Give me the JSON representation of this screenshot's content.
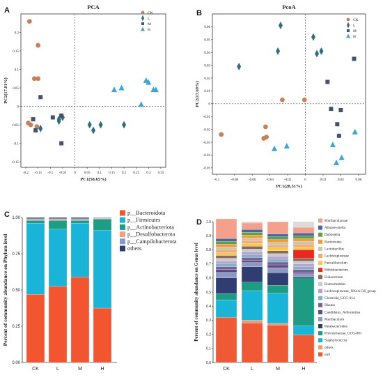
{
  "chart_data": [
    {
      "panel": "A",
      "type": "scatter",
      "title": "PCA",
      "xlabel": "PC1(58.65%)",
      "ylabel": "PC2(17.01%)",
      "xlim": [
        -0.22,
        0.37
      ],
      "ylim": [
        -0.165,
        0.25
      ],
      "xticks": [
        -0.2,
        -0.15,
        -0.1,
        -0.05,
        0,
        0.05,
        0.1,
        0.15,
        0.2,
        0.25,
        0.3,
        0.35
      ],
      "xtick_labels": [
        "-0.2",
        "-0.15",
        "-0.1",
        "-0.05",
        "0",
        "0.05",
        "0.1",
        "0.15",
        "0.2",
        "0.25",
        "0.3",
        "0.35"
      ],
      "yticks": [
        -0.15,
        -0.1,
        -0.05,
        0,
        0.05,
        0.1,
        0.15,
        0.2
      ],
      "ytick_labels": [
        "-0.15",
        "-0.1",
        "-0.05",
        "0",
        "0.05",
        "0.1",
        "0.15",
        "0.2"
      ],
      "legend_position": "top-right",
      "series": [
        {
          "name": "CK",
          "marker": "circle",
          "color": "#c8805a",
          "x": [
            -0.185,
            -0.15,
            -0.15,
            -0.165,
            -0.19,
            -0.18,
            -0.155
          ],
          "y": [
            0.23,
            0.165,
            0.075,
            0.075,
            -0.045,
            -0.05,
            -0.055
          ]
        },
        {
          "name": "L",
          "marker": "diamond",
          "color": "#2e6e7e",
          "x": [
            -0.14,
            -0.065,
            -0.065,
            -0.05,
            0.06,
            0.075,
            0.105,
            0.2
          ],
          "y": [
            -0.06,
            -0.035,
            -0.04,
            -0.03,
            -0.05,
            -0.065,
            -0.05,
            -0.05
          ]
        },
        {
          "name": "M",
          "marker": "square",
          "color": "#45526e",
          "x": [
            -0.14,
            -0.17,
            -0.16,
            -0.09,
            -0.055,
            -0.055
          ],
          "y": [
            0.025,
            -0.035,
            -0.065,
            -0.03,
            -0.1,
            -0.025
          ]
        },
        {
          "name": "H",
          "marker": "triangle",
          "color": "#3aa6d8",
          "x": [
            0.16,
            0.19,
            0.29,
            0.3,
            0.32,
            0.27,
            0.33
          ],
          "y": [
            0.045,
            0.05,
            0.07,
            0.065,
            0.045,
            0.005,
            0.045
          ]
        }
      ]
    },
    {
      "panel": "B",
      "type": "scatter",
      "title": "PcoA",
      "xlabel": "PC1(28.31%)",
      "ylabel": "PC2(17.69%)",
      "xlim": [
        -0.105,
        0.068
      ],
      "ylim": [
        -0.055,
        0.07
      ],
      "xticks": [
        -0.1,
        -0.08,
        -0.06,
        -0.04,
        -0.02,
        0,
        0.02,
        0.04,
        0.06
      ],
      "xtick_labels": [
        "-0.1",
        "-0.08",
        "-0.06",
        "-0.04",
        "-0.02",
        "0",
        "0.02",
        "0.04",
        "0.06"
      ],
      "yticks": [
        -0.05,
        -0.04,
        -0.03,
        -0.02,
        -0.01,
        0,
        0.01,
        0.02,
        0.03,
        0.04,
        0.05,
        0.06
      ],
      "ytick_labels": [
        "-0.05",
        "-0.04",
        "-0.03",
        "-0.02",
        "-0.01",
        "0",
        "0.01",
        "0.02",
        "0.03",
        "0.04",
        "0.05",
        "0.06"
      ],
      "legend_position": "top-right",
      "series": [
        {
          "name": "CK",
          "marker": "circle",
          "color": "#c8805a",
          "x": [
            -0.095,
            -0.045,
            -0.047,
            -0.044,
            -0.026,
            -0.001
          ],
          "y": [
            -0.024,
            -0.018,
            -0.027,
            -0.026,
            0.003,
            0.003
          ]
        },
        {
          "name": "L",
          "marker": "diamond",
          "color": "#2e6e7e",
          "x": [
            -0.075,
            -0.031,
            -0.028,
            0.009,
            0.018,
            0.013
          ],
          "y": [
            0.029,
            0.041,
            0.061,
            0.052,
            0.041,
            0.039
          ]
        },
        {
          "name": "M",
          "marker": "square",
          "color": "#45526e",
          "x": [
            0.055,
            0.025,
            0.029,
            0.04,
            0.036,
            0.038
          ],
          "y": [
            0.035,
            0.017,
            -0.004,
            -0.005,
            -0.016,
            -0.025
          ]
        },
        {
          "name": "H",
          "marker": "triangle",
          "color": "#3aa6d8",
          "x": [
            -0.035,
            -0.021,
            0.031,
            0.035,
            0.041,
            0.056
          ],
          "y": [
            -0.035,
            -0.033,
            -0.032,
            -0.046,
            -0.042,
            -0.022
          ]
        }
      ]
    },
    {
      "panel": "C",
      "type": "bar",
      "stacked": true,
      "title": "",
      "xlabel": "",
      "ylabel": "Percent of community abundance on Phylum level",
      "ylim": [
        0,
        1
      ],
      "categories": [
        "CK",
        "L",
        "M",
        "H"
      ],
      "legend_position": "right",
      "series": [
        {
          "name": "p__Bacteroidota",
          "color": "#f25530",
          "values": [
            0.47,
            0.525,
            0.59,
            0.375
          ]
        },
        {
          "name": "p__Firmicutes",
          "color": "#19b4d8",
          "values": [
            0.49,
            0.395,
            0.37,
            0.535
          ]
        },
        {
          "name": "p__Actinobacteriota",
          "color": "#1d9d84",
          "values": [
            0.02,
            0.06,
            0.02,
            0.08
          ]
        },
        {
          "name": "p__Desulfobacterota",
          "color": "#f0a184",
          "values": [
            0.007,
            0.008,
            0.006,
            0.004
          ]
        },
        {
          "name": "p__Campilobacterota",
          "color": "#8c98c3",
          "values": [
            0.005,
            0.004,
            0.006,
            0.003
          ]
        },
        {
          "name": "others",
          "color": "#2f3c6e",
          "values": [
            0.008,
            0.008,
            0.008,
            0.003
          ]
        }
      ]
    },
    {
      "panel": "D",
      "type": "bar",
      "stacked": true,
      "title": "",
      "xlabel": "",
      "ylabel": "Percent of community abundance on Genus level",
      "ylim": [
        0,
        1
      ],
      "categories": [
        "CK",
        "L",
        "M",
        "H"
      ],
      "legend_position": "right",
      "series": [
        {
          "name": "unil",
          "color": "#ef5a34",
          "values": [
            0.32,
            0.28,
            0.265,
            0.195
          ]
        },
        {
          "name": "others",
          "color": "#e29e80",
          "values": [
            0.0,
            0.02,
            0.013,
            0.0
          ]
        },
        {
          "name": "Staphylococcus",
          "color": "#19b5d9",
          "values": [
            0.125,
            0.21,
            0.215,
            0.065
          ]
        },
        {
          "name": "Prevotellaceae_UCG-001",
          "color": "#1e9c83",
          "values": [
            0.045,
            0.06,
            0.055,
            0.34
          ]
        },
        {
          "name": "Parabacteroides",
          "color": "#2f3d73",
          "values": [
            0.11,
            0.11,
            0.09,
            0.01
          ]
        },
        {
          "name": "Muribaculum",
          "color": "#8c99c2",
          "values": [
            0.04,
            0.03,
            0.035,
            0.02
          ]
        },
        {
          "name": "Candidatus_Arthromitus",
          "color": "#5b4a8a",
          "values": [
            0.02,
            0.015,
            0.02,
            0.01
          ]
        },
        {
          "name": "Blautia",
          "color": "#7a5f8f",
          "values": [
            0.02,
            0.02,
            0.02,
            0.02
          ]
        },
        {
          "name": "Clostridia_UCG-014",
          "color": "#7fb0d0",
          "values": [
            0.02,
            0.02,
            0.02,
            0.02
          ]
        },
        {
          "name": "Lachnospiraceae_NK4A136_group",
          "color": "#b9a4c9",
          "values": [
            0.02,
            0.02,
            0.02,
            0.02
          ]
        },
        {
          "name": "Enterorhabdus",
          "color": "#c9cbd0",
          "values": [
            0.02,
            0.02,
            0.02,
            0.02
          ]
        },
        {
          "name": "Eubacterium",
          "color": "#8a6a58",
          "values": [
            0.02,
            0.02,
            0.02,
            0.02
          ]
        },
        {
          "name": "Bifidobacterium",
          "color": "#e82a1e",
          "values": [
            0.0,
            0.0,
            0.0,
            0.06
          ]
        },
        {
          "name": "Faecalibaculum",
          "color": "#f6c94a",
          "values": [
            0.02,
            0.02,
            0.02,
            0.02
          ]
        },
        {
          "name": "Lachnospiraceae",
          "color": "#f5a97e",
          "values": [
            0.02,
            0.02,
            0.02,
            0.02
          ]
        },
        {
          "name": "Lactobacillus",
          "color": "#c8c8a4",
          "values": [
            0.02,
            0.02,
            0.02,
            0.02
          ]
        },
        {
          "name": "Bacteroides",
          "color": "#f59a3a",
          "values": [
            0.02,
            0.02,
            0.02,
            0.02
          ]
        },
        {
          "name": "Dubosiella",
          "color": "#5aa14a",
          "values": [
            0.02,
            0.02,
            0.02,
            0.02
          ]
        },
        {
          "name": "Alloprevotella",
          "color": "#4c63a8",
          "values": [
            0.02,
            0.02,
            0.02,
            0.02
          ]
        },
        {
          "name": "Muribaculaceae",
          "color": "#f5a08a",
          "values": [
            0.14,
            0.045,
            0.085,
            0.04
          ]
        }
      ],
      "legend_order": [
        "Muribaculaceae",
        "Alloprevotella",
        "Dubosiella",
        "Bacteroides",
        "Lactobacillus",
        "Lachnospiraceae",
        "Faecalibaculum",
        "Bifidobacterium",
        "Eubacterium",
        "Enterorhabdus",
        "Lachnospiraceae_NK4A136_group",
        "Clostridia_UCG-014",
        "Blautia",
        "Candidatus_Arthromitus",
        "Muribaculum",
        "Parabacteroides",
        "Prevotellaceae_UCG-001",
        "Staphylococcus",
        "others",
        "unil"
      ]
    }
  ],
  "panel_labels": [
    "A",
    "B",
    "C",
    "D"
  ]
}
